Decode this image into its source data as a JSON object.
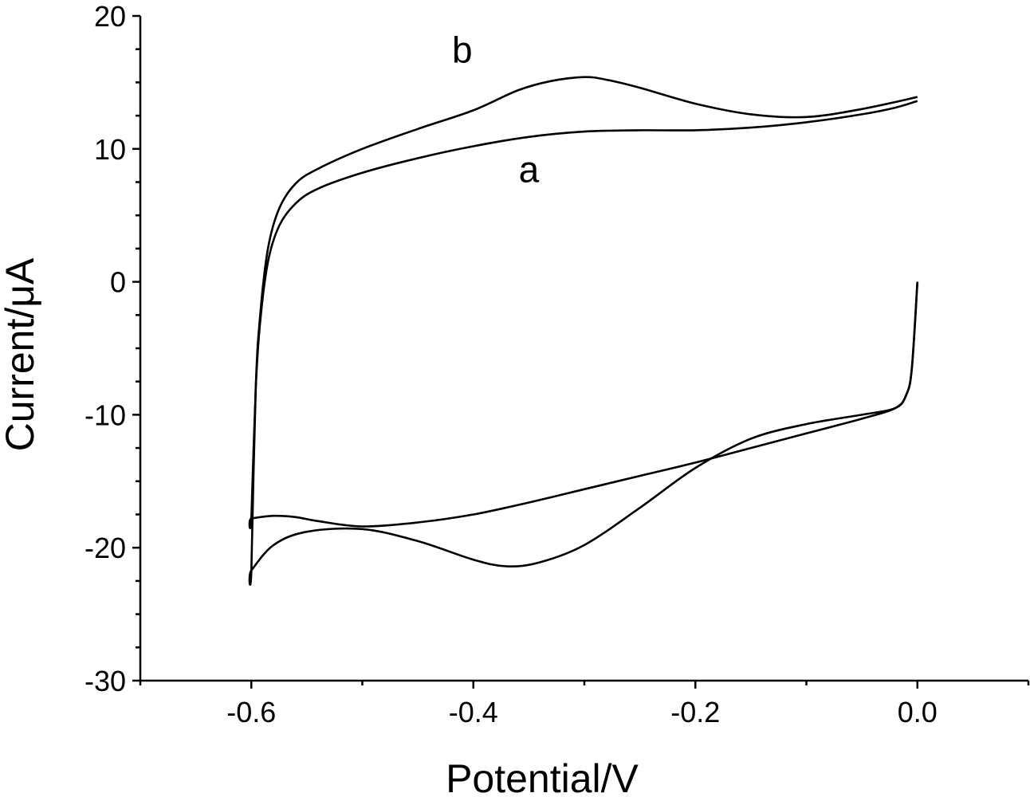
{
  "chart_data": {
    "type": "line",
    "xlabel": "Potential/V",
    "ylabel": "Current/μA",
    "xlim": [
      -0.7,
      0.1
    ],
    "ylim": [
      -30,
      20
    ],
    "x_ticks": [
      -0.6,
      -0.4,
      -0.2,
      0.0
    ],
    "x_tick_labels": [
      "-0.6",
      "-0.4",
      "-0.2",
      "0.0"
    ],
    "y_ticks": [
      20,
      10,
      0,
      -10,
      -20,
      -30
    ],
    "y_tick_labels": [
      "20",
      "10",
      "0",
      "-10",
      "-20",
      "-30"
    ],
    "x_minor_step": 0.1,
    "y_minor_step": 2.5,
    "grid": false,
    "legend": "none",
    "line_color": "#000000",
    "series": [
      {
        "name": "a",
        "x": [
          0.0,
          -0.02,
          -0.05,
          -0.1,
          -0.15,
          -0.2,
          -0.25,
          -0.3,
          -0.35,
          -0.4,
          -0.45,
          -0.5,
          -0.54,
          -0.56,
          -0.575,
          -0.585,
          -0.592,
          -0.596,
          -0.6,
          -0.6,
          -0.58,
          -0.56,
          -0.54,
          -0.5,
          -0.45,
          -0.4,
          -0.35,
          -0.3,
          -0.25,
          -0.2,
          -0.15,
          -0.1,
          -0.05,
          -0.02,
          -0.01,
          -0.005,
          0.0
        ],
        "y": [
          13.6,
          13.1,
          12.6,
          12.0,
          11.6,
          11.4,
          11.4,
          11.3,
          10.9,
          10.2,
          9.3,
          8.2,
          7.0,
          5.9,
          4.2,
          1.5,
          -3.0,
          -8.0,
          -17.8,
          -17.8,
          -17.6,
          -17.7,
          -18.0,
          -18.4,
          -18.1,
          -17.5,
          -16.6,
          -15.6,
          -14.6,
          -13.6,
          -12.5,
          -11.4,
          -10.3,
          -9.5,
          -8.5,
          -6.5,
          0.0
        ]
      },
      {
        "name": "b",
        "x": [
          0.0,
          -0.05,
          -0.1,
          -0.15,
          -0.2,
          -0.25,
          -0.28,
          -0.3,
          -0.33,
          -0.36,
          -0.4,
          -0.45,
          -0.5,
          -0.54,
          -0.56,
          -0.575,
          -0.585,
          -0.592,
          -0.596,
          -0.6,
          -0.6,
          -0.58,
          -0.55,
          -0.5,
          -0.45,
          -0.4,
          -0.37,
          -0.34,
          -0.3,
          -0.25,
          -0.2,
          -0.15,
          -0.1,
          -0.05,
          -0.02,
          -0.01,
          -0.005,
          0.0
        ],
        "y": [
          13.9,
          13.0,
          12.4,
          12.6,
          13.4,
          14.6,
          15.2,
          15.4,
          15.1,
          14.4,
          12.9,
          11.5,
          10.0,
          8.5,
          7.4,
          5.5,
          2.5,
          -2.5,
          -8.0,
          -21.7,
          -21.7,
          -19.8,
          -18.8,
          -18.6,
          -19.5,
          -20.9,
          -21.4,
          -21.1,
          -19.8,
          -17.0,
          -14.0,
          -11.8,
          -10.7,
          -10.0,
          -9.5,
          -8.5,
          -6.5,
          0.0
        ]
      }
    ],
    "annotations": [
      {
        "text": "a",
        "x": -0.35,
        "y": 7.5
      },
      {
        "text": "b",
        "x": -0.41,
        "y": 16.5
      }
    ]
  }
}
